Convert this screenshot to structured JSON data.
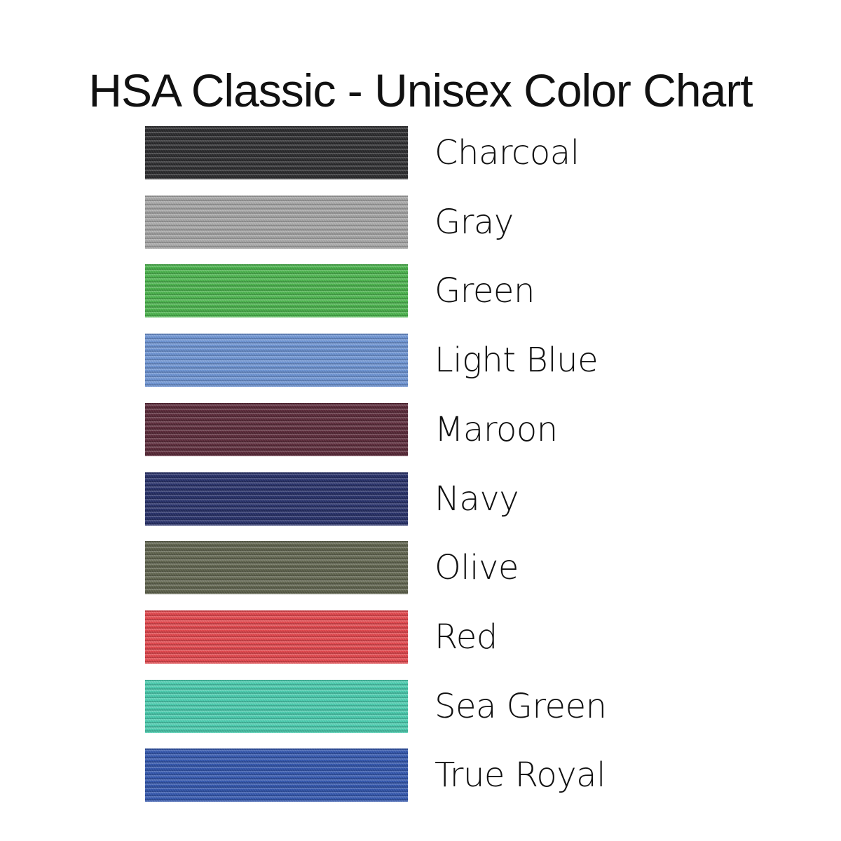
{
  "title": "HSA Classic - Unisex Color Chart",
  "colors": [
    {
      "name": "Charcoal",
      "hex": "#2f2f31"
    },
    {
      "name": "Gray",
      "hex": "#a8a8a8"
    },
    {
      "name": "Green",
      "hex": "#4db74f"
    },
    {
      "name": "Light Blue",
      "hex": "#6f96d6"
    },
    {
      "name": "Maroon",
      "hex": "#5d2c3c"
    },
    {
      "name": "Navy",
      "hex": "#28326b"
    },
    {
      "name": "Olive",
      "hex": "#636751"
    },
    {
      "name": "Red",
      "hex": "#e5484e"
    },
    {
      "name": "Sea Green",
      "hex": "#4bcfb1"
    },
    {
      "name": "True Royal",
      "hex": "#3458b0"
    }
  ]
}
